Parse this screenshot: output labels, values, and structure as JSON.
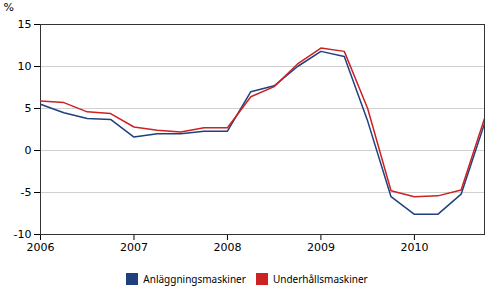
{
  "chart_data": {
    "type": "line",
    "ylabel": "%",
    "x": [
      2006.0,
      2006.25,
      2006.5,
      2006.75,
      2007.0,
      2007.25,
      2007.5,
      2007.75,
      2008.0,
      2008.25,
      2008.5,
      2008.75,
      2009.0,
      2009.25,
      2009.5,
      2009.75,
      2010.0,
      2010.25,
      2010.5,
      2010.75
    ],
    "series": [
      {
        "name": "Anläggningsmaskiner",
        "color": "#1f3f7f",
        "values": [
          5.5,
          4.5,
          3.8,
          3.7,
          1.6,
          2.0,
          2.0,
          2.3,
          2.3,
          7.0,
          7.7,
          10.0,
          11.8,
          11.2,
          3.5,
          -5.5,
          -7.6,
          -7.6,
          -5.2,
          3.2
        ]
      },
      {
        "name": "Underhållsmaskiner",
        "color": "#cc2222",
        "values": [
          5.9,
          5.7,
          4.6,
          4.4,
          2.8,
          2.4,
          2.2,
          2.7,
          2.7,
          6.4,
          7.6,
          10.3,
          12.2,
          11.8,
          5.0,
          -4.8,
          -5.5,
          -5.4,
          -4.7,
          3.8
        ]
      }
    ],
    "xlim": [
      2006.0,
      2010.75
    ],
    "xticks": [
      2006,
      2007,
      2008,
      2009,
      2010
    ],
    "ylim": [
      -10,
      15
    ],
    "yticks": [
      -10,
      -5,
      0,
      5,
      10,
      15
    ],
    "grid": true,
    "legend": "bottom"
  }
}
